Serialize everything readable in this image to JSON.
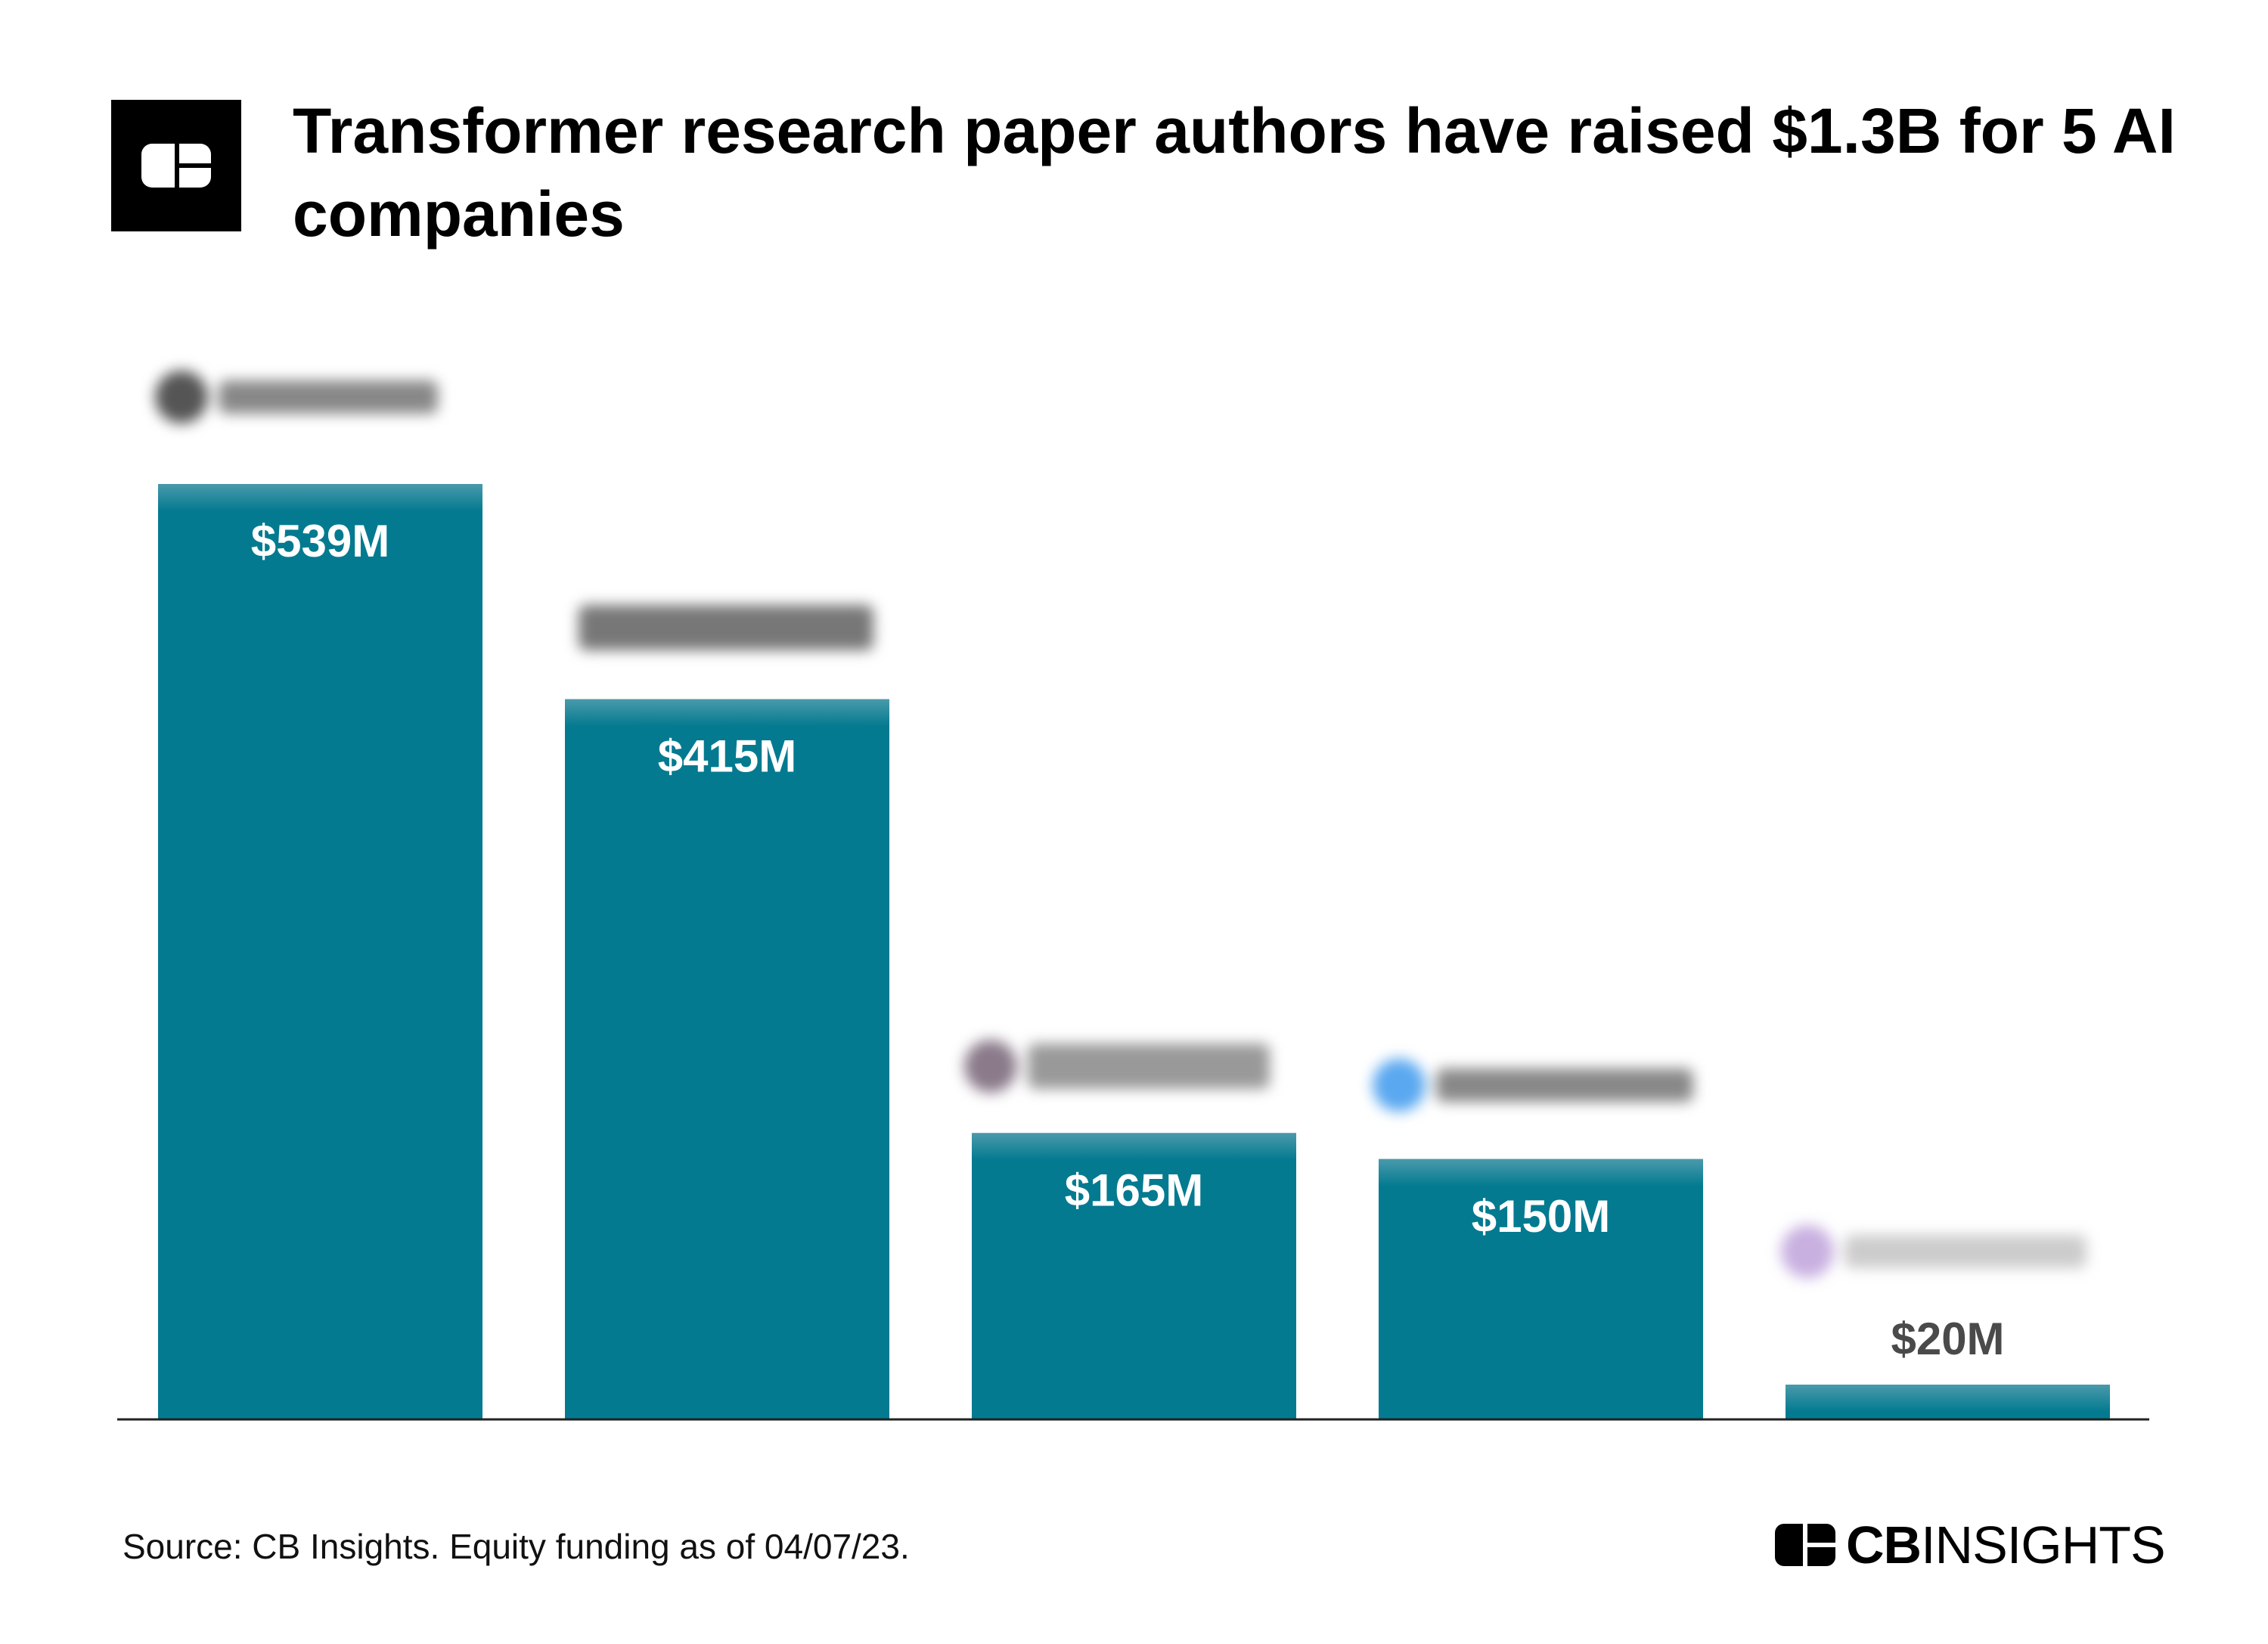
{
  "header": {
    "title": "Transformer research paper authors have raised $1.3B for 5 AI companies"
  },
  "footer": {
    "source": "Source: CB Insights. Equity funding as of 04/07/23.",
    "brand_bold": "CB",
    "brand_light": "INSIGHTS"
  },
  "colors": {
    "bar": "#037a90",
    "label_inside": "#ffffff",
    "label_outside": "#4a4a4a"
  },
  "chart_data": {
    "type": "bar",
    "title": "Transformer research paper authors have raised $1.3B for 5 AI companies",
    "categories": [
      "",
      "",
      "",
      "",
      ""
    ],
    "values": [
      539,
      415,
      165,
      150,
      20
    ],
    "data_labels": [
      "$539M",
      "$415M",
      "$165M",
      "$150M",
      "$20M"
    ],
    "unit": "$M",
    "ylim": [
      0,
      539
    ],
    "grid": false,
    "legend": "none",
    "category_logos": "blurred company logos above each bar"
  }
}
